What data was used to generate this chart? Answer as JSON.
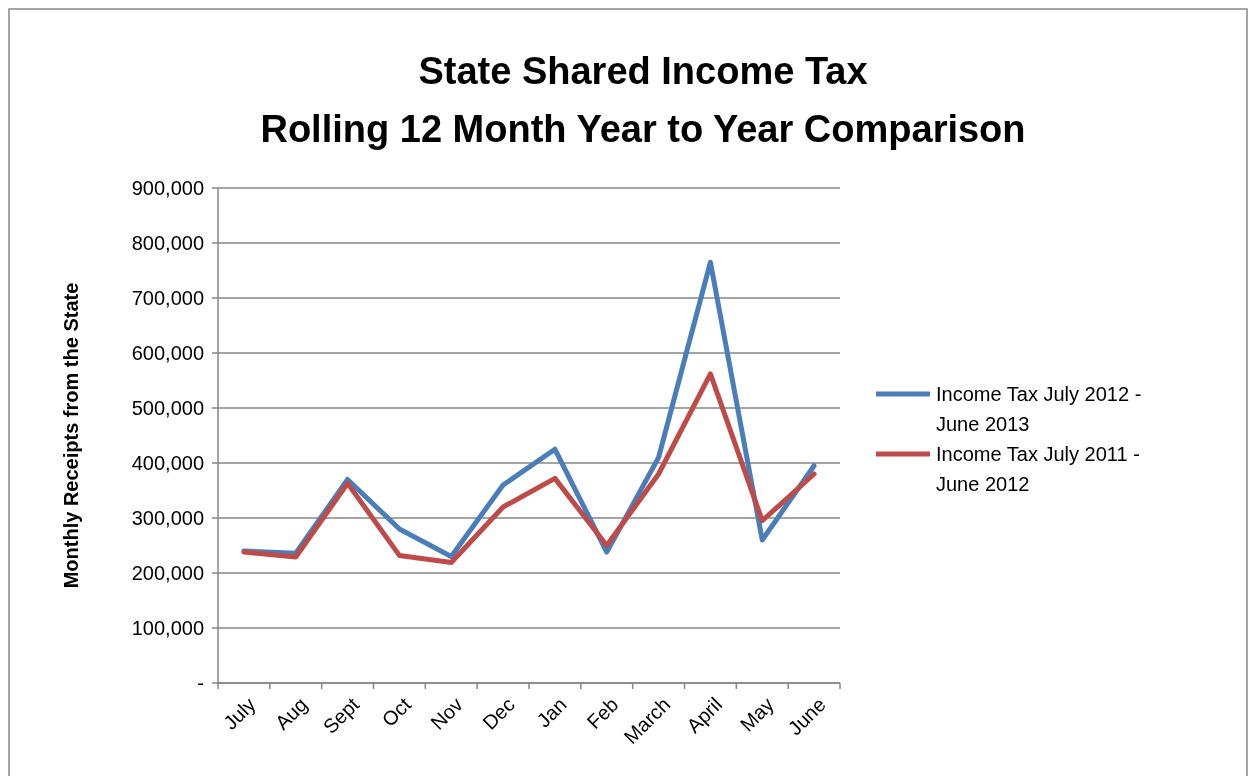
{
  "chart_data": {
    "type": "line",
    "title": "State Shared Income Tax\nRolling 12 Month Year to Year Comparison",
    "ylabel": "Monthly Receipts from the State",
    "categories": [
      "July",
      "Aug",
      "Sept",
      "Oct",
      "Nov",
      "Dec",
      "Jan",
      "Feb",
      "March",
      "April",
      "May",
      "June"
    ],
    "series": [
      {
        "name": "Income Tax July 2012 - June 2013",
        "color": "#4a7ebb",
        "values": [
          240000,
          236000,
          370000,
          280000,
          230000,
          360000,
          425000,
          238000,
          410000,
          765000,
          260000,
          395000
        ]
      },
      {
        "name": "Income Tax July 2011 - June 2012",
        "color": "#be4b48",
        "values": [
          238000,
          229000,
          363000,
          232000,
          219000,
          320000,
          372000,
          250000,
          380000,
          562000,
          295000,
          380000
        ]
      }
    ],
    "ylim": [
      0,
      900000
    ],
    "yticks": [
      {
        "value": 0,
        "label": "-"
      },
      {
        "value": 100000,
        "label": "100,000"
      },
      {
        "value": 200000,
        "label": "200,000"
      },
      {
        "value": 300000,
        "label": "300,000"
      },
      {
        "value": 400000,
        "label": "400,000"
      },
      {
        "value": 500000,
        "label": "500,000"
      },
      {
        "value": 600000,
        "label": "600,000"
      },
      {
        "value": 700000,
        "label": "700,000"
      },
      {
        "value": 800000,
        "label": "800,000"
      },
      {
        "value": 900000,
        "label": "900,000"
      }
    ],
    "grid": "y",
    "legend": "right",
    "marker": "none",
    "line_style": "solid"
  }
}
